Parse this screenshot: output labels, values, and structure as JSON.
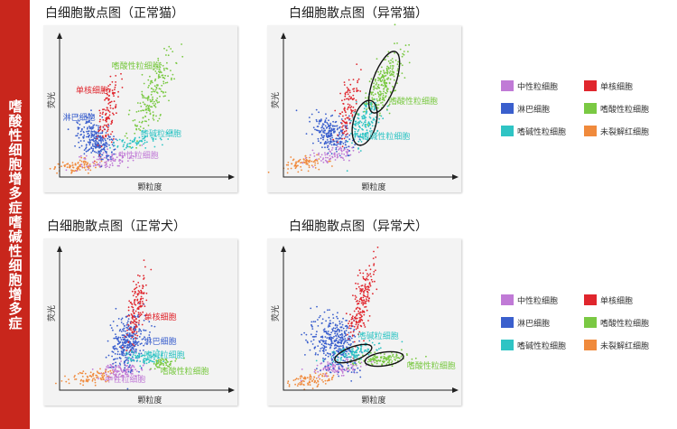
{
  "banner": {
    "text": "嗜酸性细胞增多症嗜碱性细胞增多症"
  },
  "colors": {
    "neutrophil": "#c07ad6",
    "monocyte": "#e0262d",
    "lymphocyte": "#3a5fcd",
    "eosinophil": "#7ac943",
    "basophil": "#2fc4c4",
    "rbc": "#f08a3c"
  },
  "legend_items": [
    {
      "key": "neutrophil",
      "label": "中性粒细胞"
    },
    {
      "key": "monocyte",
      "label": "单核细胞"
    },
    {
      "key": "lymphocyte",
      "label": "淋巴细胞"
    },
    {
      "key": "eosinophil",
      "label": "嗜酸性粒细胞"
    },
    {
      "key": "basophil",
      "label": "嗜碱性粒细胞"
    },
    {
      "key": "rbc",
      "label": "未裂解红细胞"
    }
  ],
  "chart_data": [
    {
      "type": "scatter",
      "title": "白细胞散点图（正常猫）",
      "xlabel": "颗粒度",
      "ylabel": "荧光",
      "xlim": [
        0,
        100
      ],
      "ylim": [
        0,
        100
      ],
      "grid": false,
      "clusters": [
        {
          "key": "rbc",
          "cx": 10,
          "cy": 8,
          "sx": 7,
          "sy": 2.5,
          "n": 90,
          "rot": 8,
          "label": ""
        },
        {
          "key": "neutrophil",
          "cx": 28,
          "cy": 12,
          "sx": 9,
          "sy": 3,
          "n": 90,
          "rot": 10,
          "label": "中性粒细胞",
          "lx": 36,
          "ly": 14
        },
        {
          "key": "lymphocyte",
          "cx": 22,
          "cy": 28,
          "sx": 5,
          "sy": 8,
          "n": 260,
          "rot": 35,
          "label": "淋巴细胞",
          "lx": 2,
          "ly": 42
        },
        {
          "key": "monocyte",
          "cx": 30,
          "cy": 50,
          "sx": 2.5,
          "sy": 13,
          "n": 120,
          "rot": -8,
          "label": "单核细胞",
          "lx": 10,
          "ly": 62
        },
        {
          "key": "basophil",
          "cx": 48,
          "cy": 26,
          "sx": 9,
          "sy": 2.5,
          "n": 70,
          "rot": 10,
          "label": "嗜碱粒细胞",
          "lx": 50,
          "ly": 30
        },
        {
          "key": "eosinophil",
          "cx": 57,
          "cy": 60,
          "sx": 4,
          "sy": 17,
          "n": 200,
          "rot": -20,
          "label": "嗜酸性粒细胞",
          "lx": 32,
          "ly": 80
        }
      ],
      "ellipses": []
    },
    {
      "type": "scatter",
      "title": "白细胞散点图（异常猫）",
      "xlabel": "颗粒度",
      "ylabel": "荧光",
      "xlim": [
        0,
        100
      ],
      "ylim": [
        0,
        100
      ],
      "grid": false,
      "clusters": [
        {
          "key": "rbc",
          "cx": 12,
          "cy": 10,
          "sx": 7,
          "sy": 2.5,
          "n": 80,
          "rot": 8,
          "label": ""
        },
        {
          "key": "neutrophil",
          "cx": 32,
          "cy": 17,
          "sx": 8,
          "sy": 3,
          "n": 80,
          "rot": 12,
          "label": ""
        },
        {
          "key": "lymphocyte",
          "cx": 30,
          "cy": 32,
          "sx": 5,
          "sy": 8,
          "n": 240,
          "rot": 35,
          "label": ""
        },
        {
          "key": "monocyte",
          "cx": 40,
          "cy": 52,
          "sx": 2.5,
          "sy": 12,
          "n": 110,
          "rot": -10,
          "label": ""
        },
        {
          "key": "basophil",
          "cx": 50,
          "cy": 40,
          "sx": 4,
          "sy": 9,
          "n": 170,
          "rot": -15,
          "label": "嗜碱性粒细胞",
          "lx": 48,
          "ly": 28
        },
        {
          "key": "eosinophil",
          "cx": 62,
          "cy": 70,
          "sx": 4,
          "sy": 13,
          "n": 240,
          "rot": -20,
          "label": "嗜酸性粒细胞",
          "lx": 65,
          "ly": 54
        }
      ],
      "ellipses": [
        {
          "cx": 50,
          "cy": 40,
          "rx": 7,
          "ry": 17,
          "rot": -15
        },
        {
          "cx": 62,
          "cy": 70,
          "rx": 7,
          "ry": 24,
          "rot": -20
        }
      ]
    },
    {
      "type": "scatter",
      "title": "白细胞散点图（正常犬）",
      "xlabel": "颗粒度",
      "ylabel": "荧光",
      "xlim": [
        0,
        100
      ],
      "ylim": [
        0,
        100
      ],
      "grid": false,
      "clusters": [
        {
          "key": "rbc",
          "cx": 20,
          "cy": 10,
          "sx": 8,
          "sy": 2.5,
          "n": 90,
          "rot": 8,
          "label": ""
        },
        {
          "key": "neutrophil",
          "cx": 38,
          "cy": 15,
          "sx": 7,
          "sy": 3,
          "n": 110,
          "rot": 8,
          "label": "中性粒细胞",
          "lx": 28,
          "ly": 6
        },
        {
          "key": "lymphocyte",
          "cx": 42,
          "cy": 35,
          "sx": 5,
          "sy": 10,
          "n": 320,
          "rot": -8,
          "label": "淋巴细胞",
          "lx": 52,
          "ly": 34
        },
        {
          "key": "monocyte",
          "cx": 48,
          "cy": 62,
          "sx": 2.5,
          "sy": 14,
          "n": 150,
          "rot": -8,
          "label": "单核细胞",
          "lx": 52,
          "ly": 52
        },
        {
          "key": "basophil",
          "cx": 52,
          "cy": 24,
          "sx": 6,
          "sy": 2.5,
          "n": 70,
          "rot": 5,
          "label": "嗜碱粒细胞",
          "lx": 52,
          "ly": 24
        },
        {
          "key": "eosinophil",
          "cx": 63,
          "cy": 20,
          "sx": 4,
          "sy": 2,
          "n": 55,
          "rot": 15,
          "label": "嗜酸性粒细胞",
          "lx": 62,
          "ly": 12
        }
      ],
      "ellipses": []
    },
    {
      "type": "scatter",
      "title": "白细胞散点图（异常犬）",
      "xlabel": "颗粒度",
      "ylabel": "荧光",
      "xlim": [
        0,
        100
      ],
      "ylim": [
        0,
        100
      ],
      "grid": false,
      "clusters": [
        {
          "key": "rbc",
          "cx": 18,
          "cy": 8,
          "sx": 8,
          "sy": 2.5,
          "n": 90,
          "rot": 8,
          "label": ""
        },
        {
          "key": "neutrophil",
          "cx": 35,
          "cy": 17,
          "sx": 8,
          "sy": 3,
          "n": 110,
          "rot": 10,
          "label": ""
        },
        {
          "key": "lymphocyte",
          "cx": 32,
          "cy": 35,
          "sx": 7,
          "sy": 11,
          "n": 380,
          "rot": 20,
          "label": ""
        },
        {
          "key": "monocyte",
          "cx": 48,
          "cy": 62,
          "sx": 3,
          "sy": 16,
          "n": 200,
          "rot": -10,
          "label": ""
        },
        {
          "key": "basophil",
          "cx": 43,
          "cy": 27,
          "sx": 9,
          "sy": 3,
          "n": 120,
          "rot": 20,
          "label": "嗜碱粒细胞",
          "lx": 46,
          "ly": 38
        },
        {
          "key": "eosinophil",
          "cx": 62,
          "cy": 23,
          "sx": 8,
          "sy": 2.5,
          "n": 130,
          "rot": 8,
          "label": "嗜酸性粒细胞",
          "lx": 76,
          "ly": 16
        }
      ],
      "ellipses": [
        {
          "cx": 43,
          "cy": 27,
          "rx": 12,
          "ry": 5,
          "rot": 20
        },
        {
          "cx": 62,
          "cy": 23,
          "rx": 12,
          "ry": 5,
          "rot": 8
        }
      ]
    }
  ]
}
